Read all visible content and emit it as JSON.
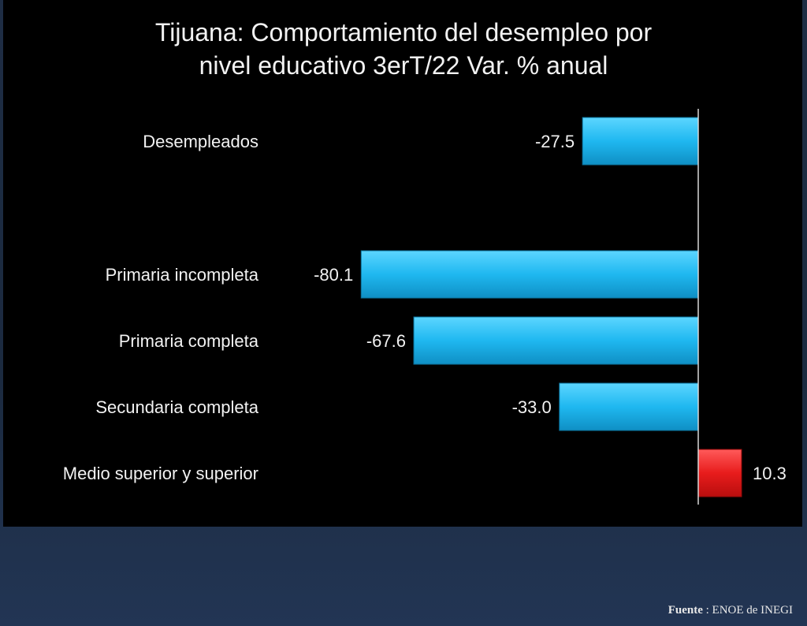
{
  "title_lines": [
    "Tijuana: Comportamiento del desempleo por",
    "nivel educativo 3erT/22 Var. % anual"
  ],
  "source": {
    "label": "Fuente",
    "separator": ":",
    "text": "ENOE de INEGI"
  },
  "colors": {
    "negative": "#1fb8f0",
    "positive": "#e81c1c",
    "axis": "#d8d8d8",
    "text": "#f2f2f2"
  },
  "chart_data": {
    "type": "bar",
    "orientation": "horizontal",
    "title": "Tijuana: Comportamiento del desempleo por nivel educativo 3erT/22 Var. % anual",
    "categories": [
      "Desempleados",
      "Primaria incompleta",
      "Primaria completa",
      "Secundaria completa",
      "Medio superior y superior"
    ],
    "values": [
      -27.5,
      -80.1,
      -67.6,
      -33.0,
      10.3
    ],
    "value_labels": [
      "-27.5",
      "-80.1",
      "-67.6",
      "-33.0",
      "10.3"
    ],
    "xlim": [
      -80.1,
      10.3
    ],
    "grid": false,
    "legend": "none"
  }
}
